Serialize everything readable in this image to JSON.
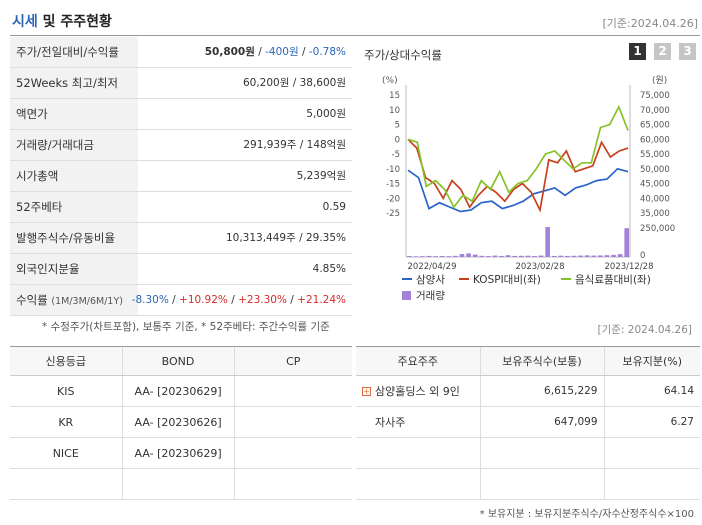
{
  "header": {
    "title_accent": "시세",
    "title_rest": " 및 주주현황",
    "date": "[기준:2024.04.26]"
  },
  "market": {
    "rows": [
      {
        "label": "주가/전일대비/수익률",
        "v1": "50,800원",
        "v2": "-400원",
        "v3": "-0.78%"
      },
      {
        "label": "52Weeks 최고/최저",
        "value": "60,200원 / 38,600원"
      },
      {
        "label": "액면가",
        "value": "5,000원"
      },
      {
        "label": "거래량/거래대금",
        "value": "291,939주 / 148억원"
      },
      {
        "label": "시가총액",
        "value": "5,239억원"
      },
      {
        "label": "52주베타",
        "value": "0.59"
      },
      {
        "label": "발행주식수/유동비율",
        "value": "10,313,449주 / 29.35%"
      },
      {
        "label": "외국인지분율",
        "value": "4.85%"
      }
    ],
    "returns": {
      "label": "수익률",
      "sub": "(1M/3M/6M/1Y)",
      "r1": "-8.30%",
      "r2": "+10.92%",
      "r3": "+23.30%",
      "r4": "+21.24%"
    },
    "note": "* 수정주가(차트포함), 보통주 기준, * 52주베타: 주간수익률 기준"
  },
  "chart_panel": {
    "title": "주가/상대수익률",
    "buttons": [
      "1",
      "2",
      "3"
    ]
  },
  "chart_data": {
    "type": "line",
    "left_unit": "(%)",
    "right_unit": "(원)",
    "left_ticks": [
      15,
      10,
      5,
      0,
      -5,
      -10,
      -15,
      -20,
      -25
    ],
    "right_ticks": [
      "75,000",
      "70,000",
      "65,000",
      "60,000",
      "55,000",
      "50,000",
      "45,000",
      "40,000",
      "35,000"
    ],
    "vol_ticks": [
      "250,000",
      "0"
    ],
    "x_labels": [
      "2022/04/29",
      "2023/02/28",
      "2023/12/28"
    ],
    "ylim_left": [
      -25,
      15
    ],
    "ylim_right": [
      35000,
      75000
    ],
    "vol_max": 250000,
    "series": [
      {
        "name": "삼양사",
        "color": "#2a64c8",
        "axis": "right",
        "values": [
          49500,
          47000,
          36500,
          38500,
          37000,
          35500,
          36000,
          38500,
          39000,
          36500,
          37500,
          39000,
          41500,
          42500,
          43500,
          41000,
          43500,
          44500,
          46000,
          46500,
          50000,
          49000
        ]
      },
      {
        "name": "KOSPI대비(좌)",
        "color": "#c8401e",
        "axis": "left",
        "values": [
          0,
          -3,
          -13,
          -15,
          -20,
          -14,
          -17,
          -23,
          -19,
          -16,
          -18,
          -21,
          -17,
          -15,
          -18,
          -24,
          -7,
          -8,
          -4,
          -11,
          -10,
          -9,
          -1,
          -6,
          -4,
          -3
        ]
      },
      {
        "name": "음식료품대비(좌)",
        "color": "#86c22a",
        "axis": "left",
        "values": [
          0,
          -1,
          -16,
          -14,
          -17,
          -23,
          -19,
          -21,
          -14,
          -17,
          -11,
          -18,
          -15,
          -14,
          -10,
          -5,
          -4,
          -7,
          -10,
          -8,
          -8,
          4,
          5,
          11,
          3
        ]
      },
      {
        "name": "거래량",
        "color": "#a481d8",
        "axis": "volume",
        "values": [
          8000,
          6000,
          7000,
          9000,
          7000,
          8000,
          7000,
          10000,
          25000,
          30000,
          20000,
          10000,
          8000,
          12000,
          9000,
          15000,
          9000,
          10000,
          11000,
          8000,
          12000,
          260000,
          9000,
          11000,
          9000,
          10000,
          12000,
          14000,
          12000,
          13000,
          15000,
          18000,
          24000,
          240000
        ]
      }
    ]
  },
  "bottom": {
    "date": "[기준: 2024.04.26]"
  },
  "credit": {
    "headers": [
      "신용등급",
      "BOND",
      "CP"
    ],
    "rows": [
      {
        "agency": "KIS",
        "bond": "AA-  [20230629]",
        "cp": ""
      },
      {
        "agency": "KR",
        "bond": "AA-  [20230626]",
        "cp": ""
      },
      {
        "agency": "NICE",
        "bond": "AA-  [20230629]",
        "cp": ""
      },
      {
        "agency": "",
        "bond": "",
        "cp": ""
      }
    ]
  },
  "shareholders": {
    "headers": [
      "주요주주",
      "보유주식수(보통)",
      "보유지분(%)"
    ],
    "rows": [
      {
        "name": "삼양홀딩스 외 9인",
        "shares": "6,615,229",
        "pct": "64.14",
        "expand": "+"
      },
      {
        "name": "자사주",
        "shares": "647,099",
        "pct": "6.27"
      },
      {
        "name": "",
        "shares": "",
        "pct": ""
      },
      {
        "name": "",
        "shares": "",
        "pct": ""
      }
    ],
    "note": "* 보유지분 : 보유지분주식수/자수산정주식수×100"
  }
}
